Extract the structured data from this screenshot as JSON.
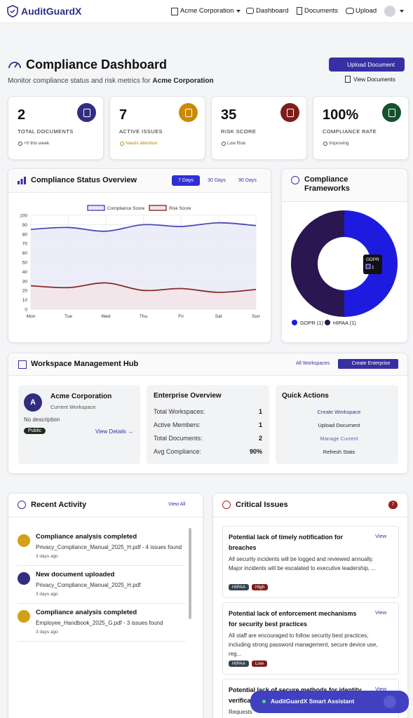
{
  "nav": {
    "brand": "AuditGuardX",
    "org": "Acme Corporation",
    "links": [
      "Dashboard",
      "Documents",
      "Upload"
    ]
  },
  "header": {
    "title": "Compliance Dashboard",
    "subtitle": "Monitor compliance status and risk metrics for",
    "org": "Acme Corporation",
    "primary_button": "Upload Document",
    "secondary_button": "View Documents"
  },
  "stats": [
    {
      "value": "2",
      "label": "TOTAL DOCUMENTS",
      "note": "+0 this week",
      "color": "#312e81",
      "note_color": "#444444"
    },
    {
      "value": "7",
      "label": "ACTIVE ISSUES",
      "note": "Needs attention",
      "color": "#ca8a04",
      "note_color": "#b7860b"
    },
    {
      "value": "35",
      "label": "RISK SCORE",
      "note": "Low Risk",
      "color": "#7f1d1d",
      "note_color": "#444444"
    },
    {
      "value": "100%",
      "label": "COMPLIANCE RATE",
      "note": "Improving",
      "color": "#14532d",
      "note_color": "#444444"
    }
  ],
  "status_overview": {
    "title": "Compliance Status Overview",
    "ranges": [
      "7 Days",
      "30 Days",
      "90 Days"
    ],
    "chart_data": {
      "type": "line",
      "x": [
        "Mon",
        "Tue",
        "Wed",
        "Thu",
        "Fri",
        "Sat",
        "Sun"
      ],
      "series": [
        {
          "name": "Compliance Score",
          "color": "#4a4ab8",
          "fill": "#e8e8f8",
          "values": [
            85,
            87,
            83,
            90,
            88,
            92,
            89
          ]
        },
        {
          "name": "Risk Score",
          "color": "#8b2a2a",
          "fill": "#f3e4e6",
          "values": [
            25,
            23,
            28,
            20,
            22,
            18,
            21
          ]
        }
      ],
      "ylim": [
        0,
        100
      ],
      "yticks": [
        0,
        10,
        20,
        30,
        40,
        50,
        60,
        70,
        80,
        90,
        100
      ],
      "grid": true
    }
  },
  "frameworks": {
    "title": "Compliance Frameworks",
    "chart_data": {
      "type": "pie",
      "donut": true,
      "categories": [
        "GDPR",
        "HIPAA"
      ],
      "values": [
        1,
        1
      ],
      "value_labels": [
        "GDPR (1)",
        "HIPAA (1)"
      ],
      "colors": [
        "#1e1be0",
        "#2a1650"
      ]
    }
  },
  "workspace_hub": {
    "title": "Workspace Management Hub",
    "buttons": [
      "All Workspaces",
      "Create Enterprise"
    ],
    "workspace": {
      "avatar": "A",
      "name": "Acme Corporation",
      "role": "Current Workspace",
      "description": "No description",
      "visibility": "Public",
      "link": "View Details →"
    },
    "overview": {
      "title": "Enterprise Overview",
      "rows": [
        [
          "Total Workspaces:",
          "1"
        ],
        [
          "Active Members:",
          "1"
        ],
        [
          "Total Documents:",
          "2"
        ],
        [
          "Avg Compliance:",
          "90%"
        ]
      ]
    },
    "quick_actions": {
      "title": "Quick Actions",
      "items": [
        "Create Workspace",
        "Upload Document",
        "Manage Current",
        "Refresh Stats"
      ]
    }
  },
  "recent_activity": {
    "title": "Recent Activity",
    "link": "View All",
    "items": [
      {
        "title": "Compliance analysis completed",
        "detail": "Privacy_Compliance_Manual_2025_H.pdf - 4 issues found",
        "time": "3 days ago",
        "color": "#d4a017"
      },
      {
        "title": "New document uploaded",
        "detail": "Privacy_Compliance_Manual_2025_H.pdf",
        "time": "3 days ago",
        "color": "#312e81"
      },
      {
        "title": "Compliance analysis completed",
        "detail": "Employee_Handbook_2025_G.pdf - 3 issues found",
        "time": "3 days ago",
        "color": "#d4a017"
      }
    ]
  },
  "critical_issues": {
    "title": "Critical Issues",
    "count": "7",
    "issues": [
      {
        "title": "Potential lack of timely notification for breaches",
        "description": "All security incidents will be logged and reviewed annually. Major incidents will be escalated to executive leadership, ...",
        "tags": [
          "HIPAA",
          "High"
        ],
        "action": "View"
      },
      {
        "title": "Potential lack of enforcement mechanisms for security best practices",
        "description": "All staff are encouraged to follow security best practices, including strong password management, secure device use, reg...",
        "tags": [
          "HIPAA",
          "Low"
        ],
        "action": "View"
      },
      {
        "title": "Potential lack of secure methods for identity verification",
        "description": "Requests",
        "tags": [],
        "action": "View"
      }
    ]
  },
  "assistant": {
    "label": "AuditGuardX Smart Assistant"
  }
}
